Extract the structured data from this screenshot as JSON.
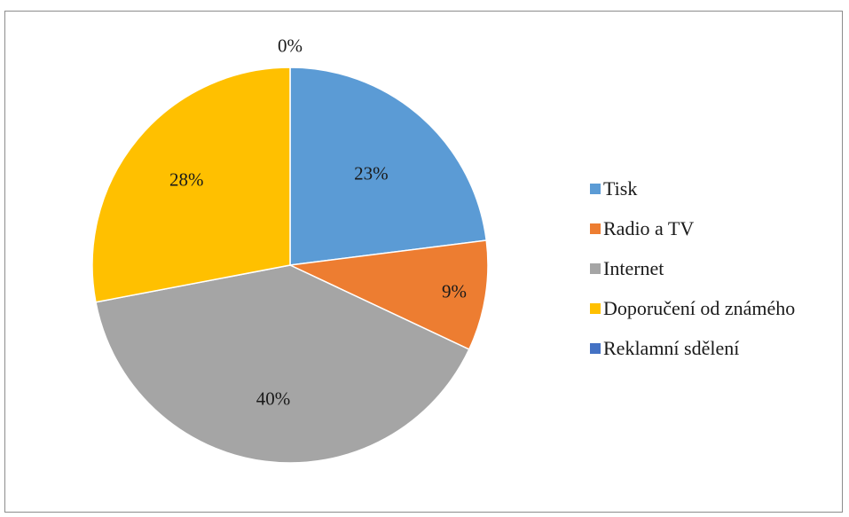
{
  "chart_data": {
    "type": "pie",
    "categories": [
      "Tisk",
      "Radio a TV",
      "Internet",
      "Doporučení od známého",
      "Reklamní sdělení"
    ],
    "values": [
      23,
      9,
      40,
      28,
      0
    ],
    "labels": [
      "23%",
      "9%",
      "40%",
      "28%",
      "0%"
    ],
    "colors": [
      "#5b9bd5",
      "#ed7d31",
      "#a5a5a5",
      "#ffc000",
      "#4472c4"
    ],
    "start_angle_deg": 0,
    "direction": "clockwise",
    "legend_position": "right",
    "title": ""
  }
}
